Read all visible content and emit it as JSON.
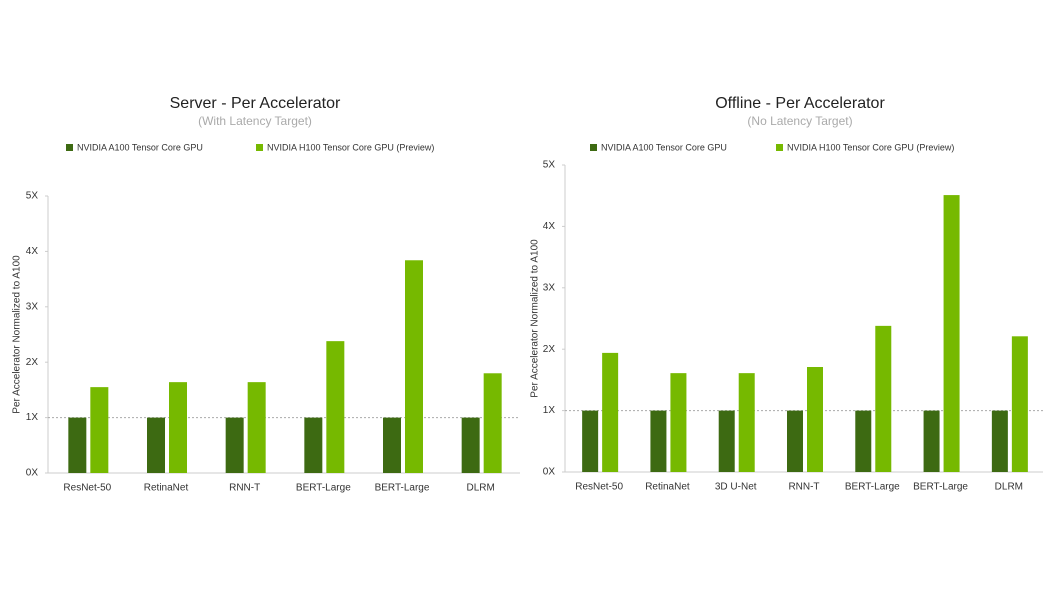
{
  "chart_data": [
    {
      "type": "bar",
      "title": "Server - Per Accelerator",
      "subtitle": "(With Latency Target)",
      "y_label": "Per Accelerator Normalized to A100",
      "categories": [
        "ResNet-50",
        "RetinaNet",
        "RNN-T",
        "BERT-Large",
        "BERT-Large",
        "DLRM"
      ],
      "series": [
        {
          "name": "NVIDIA A100 Tensor Core GPU",
          "color": "#3d6a12",
          "values": [
            1,
            1,
            1,
            1,
            1,
            1
          ]
        },
        {
          "name": "NVIDIA H100 Tensor Core GPU (Preview)",
          "color": "#76b900",
          "values": [
            1.55,
            1.64,
            1.64,
            2.38,
            3.84,
            1.8
          ]
        }
      ],
      "ylim": [
        0,
        5
      ],
      "yticks": [
        {
          "value": 0,
          "label": "0X"
        },
        {
          "value": 1,
          "label": "1X"
        },
        {
          "value": 2,
          "label": "2X"
        },
        {
          "value": 3,
          "label": "3X"
        },
        {
          "value": 4,
          "label": "4X"
        },
        {
          "value": 5,
          "label": "5X"
        }
      ],
      "reference_line": 1,
      "legend": "top"
    },
    {
      "type": "bar",
      "title": "Offline - Per Accelerator",
      "subtitle": "(No Latency Target)",
      "y_label": "Per Accelerator Normalized to A100",
      "categories": [
        "ResNet-50",
        "RetinaNet",
        "3D U-Net",
        "RNN-T",
        "BERT-Large",
        "BERT-Large",
        "DLRM"
      ],
      "series": [
        {
          "name": "NVIDIA A100 Tensor Core GPU",
          "color": "#3d6a12",
          "values": [
            1,
            1,
            1,
            1,
            1,
            1,
            1
          ]
        },
        {
          "name": "NVIDIA H100 Tensor Core GPU (Preview)",
          "color": "#76b900",
          "values": [
            1.94,
            1.61,
            1.61,
            1.71,
            2.38,
            4.51,
            2.21
          ]
        }
      ],
      "ylim": [
        0,
        5
      ],
      "yticks": [
        {
          "value": 0,
          "label": "0X"
        },
        {
          "value": 1,
          "label": "1X"
        },
        {
          "value": 2,
          "label": "2X"
        },
        {
          "value": 3,
          "label": "3X"
        },
        {
          "value": 4,
          "label": "4X"
        },
        {
          "value": 5,
          "label": "5X"
        }
      ],
      "reference_line": 1,
      "legend": "top"
    }
  ]
}
